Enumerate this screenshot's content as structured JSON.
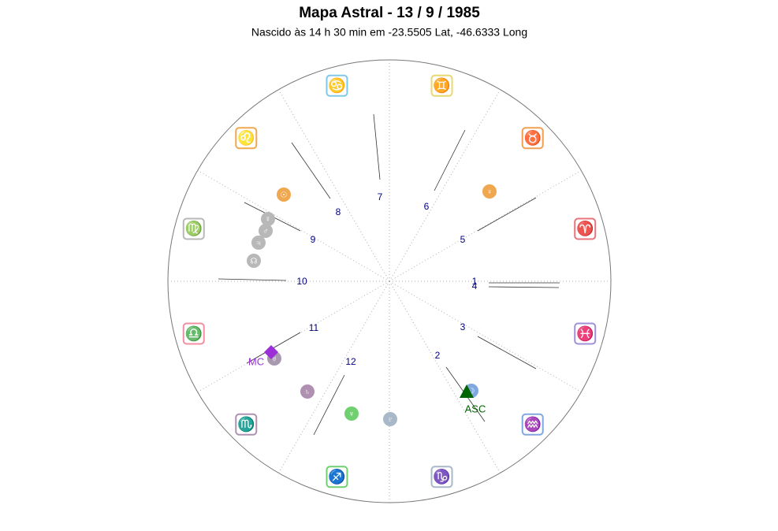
{
  "title": "Mapa Astral - 13 / 9 / 1985",
  "subtitle": "Nascido às 14 h 30 min em -23.5505 Lat, -46.6333 Long",
  "signs": [
    "♈",
    "♉",
    "♊",
    "♋",
    "♌",
    "♍",
    "♎",
    "♏",
    "♐",
    "♑",
    "♒",
    "♓"
  ],
  "houses": [
    "1",
    "2",
    "3",
    "4",
    "5",
    "6",
    "7",
    "8",
    "9",
    "10",
    "11",
    "12"
  ],
  "planets": [
    "☉",
    "♀",
    "☿",
    "♂",
    "♃",
    "☊",
    "♅",
    "♄",
    "♆",
    "♇",
    "☽"
  ],
  "ascendant": "ASC",
  "midheaven": "MC"
}
